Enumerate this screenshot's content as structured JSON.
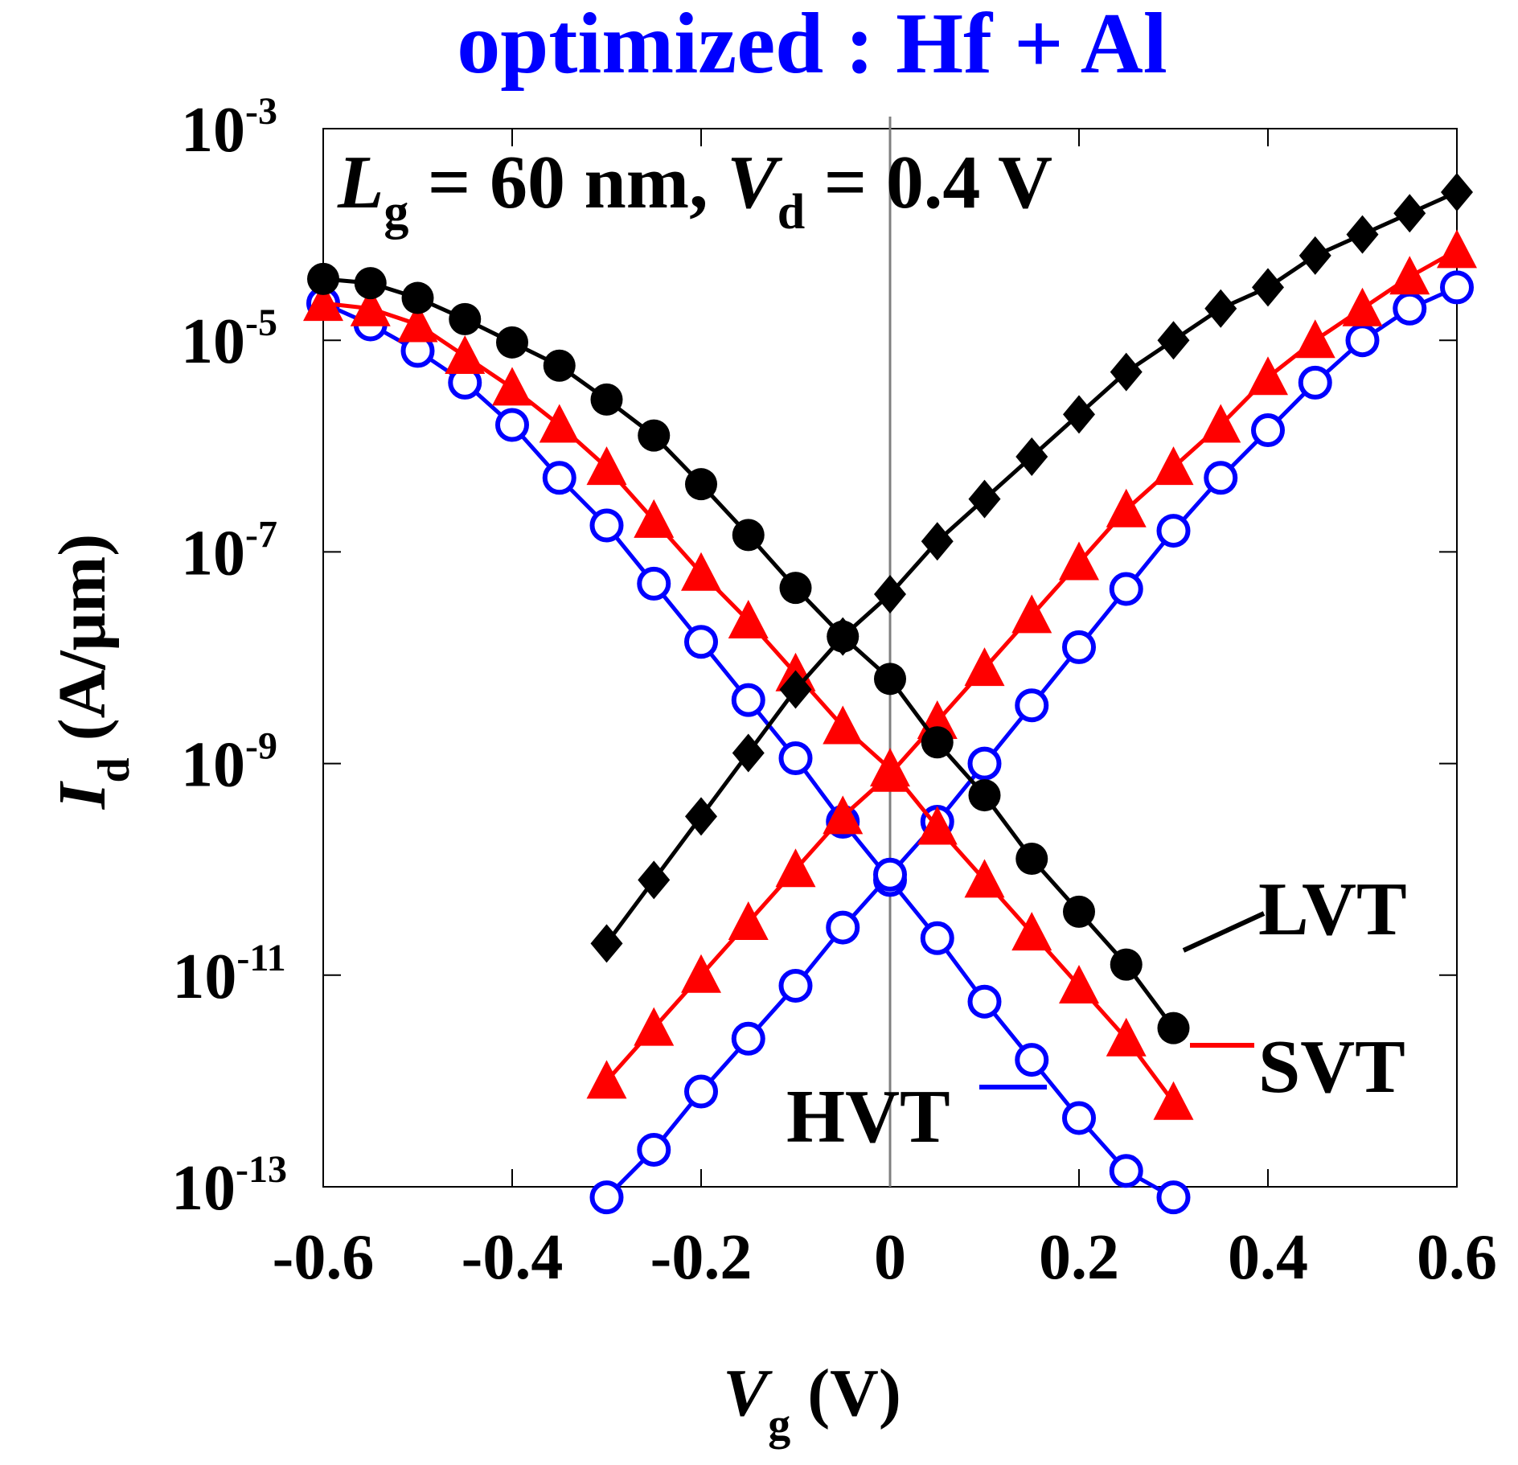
{
  "chart_data": {
    "type": "line",
    "title": "optimized : Hf + Al",
    "annotation": {
      "lg_symbol": "L",
      "lg_sub": "g",
      "lg_value": " = 60 nm, ",
      "vd_symbol": "V",
      "vd_sub": "d",
      "vd_value": " = 0.4 V"
    },
    "xlabel": {
      "symbol": "V",
      "sub": "g",
      "unit": " (V)"
    },
    "ylabel": {
      "symbol": "I",
      "sub": "d",
      "unit": " (A/μm)"
    },
    "xlim": [
      -0.6,
      0.6
    ],
    "ylim_log10": [
      -13,
      -3
    ],
    "x_ticks": [
      -0.6,
      -0.4,
      -0.2,
      0,
      0.2,
      0.4,
      0.6
    ],
    "x_tick_labels": [
      "-0.6",
      "-0.4",
      "-0.2",
      "0",
      "0.2",
      "0.4",
      "0.6"
    ],
    "y_ticks_log10": [
      -13,
      -11,
      -9,
      -7,
      -5,
      -3
    ],
    "y_tick_base": "10",
    "y_tick_exps": [
      "-13",
      "-11",
      "-9",
      "-7",
      "-5",
      "-3"
    ],
    "vertical_line_x": 0,
    "colors": {
      "LVT": "#000000",
      "SVT": "#ff0000",
      "HVT": "#0000ff",
      "title": "#0000ff",
      "axis": "#000000",
      "zero_line": "#808080"
    },
    "series": [
      {
        "name": "LVT",
        "label": "LVT",
        "color": "#000000",
        "branches": [
          {
            "name": "LVT-pmos",
            "marker": "circle-filled",
            "x": [
              -0.6,
              -0.55,
              -0.5,
              -0.45,
              -0.4,
              -0.35,
              -0.3,
              -0.25,
              -0.2,
              -0.15,
              -0.1,
              -0.05,
              0,
              0.05,
              0.1,
              0.15,
              0.2,
              0.25,
              0.3
            ],
            "log10_y": [
              -4.42,
              -4.46,
              -4.6,
              -4.8,
              -5.02,
              -5.24,
              -5.56,
              -5.9,
              -6.36,
              -6.84,
              -7.34,
              -7.8,
              -8.2,
              -8.8,
              -9.3,
              -9.9,
              -10.4,
              -10.9,
              -11.5
            ]
          },
          {
            "name": "LVT-nmos",
            "marker": "diamond-filled",
            "x": [
              -0.3,
              -0.25,
              -0.2,
              -0.15,
              -0.1,
              -0.05,
              0,
              0.05,
              0.1,
              0.15,
              0.2,
              0.25,
              0.3,
              0.35,
              0.4,
              0.45,
              0.5,
              0.55,
              0.6
            ],
            "log10_y": [
              -10.7,
              -10.1,
              -9.5,
              -8.9,
              -8.3,
              -7.8,
              -7.4,
              -6.9,
              -6.5,
              -6.1,
              -5.7,
              -5.3,
              -5.0,
              -4.7,
              -4.5,
              -4.2,
              -4.0,
              -3.8,
              -3.6
            ]
          }
        ]
      },
      {
        "name": "SVT",
        "label": "SVT",
        "color": "#ff0000",
        "branches": [
          {
            "name": "SVT-pmos",
            "marker": "triangle-filled",
            "x": [
              -0.6,
              -0.55,
              -0.5,
              -0.45,
              -0.4,
              -0.35,
              -0.3,
              -0.25,
              -0.2,
              -0.15,
              -0.1,
              -0.05,
              0,
              0.05,
              0.1,
              0.15,
              0.2,
              0.25,
              0.3
            ],
            "log10_y": [
              -4.65,
              -4.7,
              -4.85,
              -5.15,
              -5.45,
              -5.8,
              -6.2,
              -6.7,
              -7.2,
              -7.65,
              -8.15,
              -8.65,
              -9.05,
              -9.6,
              -10.1,
              -10.6,
              -11.1,
              -11.6,
              -12.2
            ]
          },
          {
            "name": "SVT-nmos",
            "marker": "triangle-filled",
            "x": [
              -0.3,
              -0.25,
              -0.2,
              -0.15,
              -0.1,
              -0.05,
              0,
              0.05,
              0.1,
              0.15,
              0.2,
              0.25,
              0.3,
              0.35,
              0.4,
              0.45,
              0.5,
              0.55,
              0.6
            ],
            "log10_y": [
              -12.0,
              -11.5,
              -11.0,
              -10.5,
              -10.0,
              -9.5,
              -9.1,
              -8.6,
              -8.1,
              -7.6,
              -7.1,
              -6.6,
              -6.2,
              -5.8,
              -5.35,
              -5.0,
              -4.7,
              -4.4,
              -4.15
            ]
          }
        ]
      },
      {
        "name": "HVT",
        "label": "HVT",
        "color": "#0000ff",
        "branches": [
          {
            "name": "HVT-pmos",
            "marker": "circle-open",
            "x": [
              -0.6,
              -0.55,
              -0.5,
              -0.45,
              -0.4,
              -0.35,
              -0.3,
              -0.25,
              -0.2,
              -0.15,
              -0.1,
              -0.05,
              0,
              0.05,
              0.1,
              0.15,
              0.2,
              0.25,
              0.3
            ],
            "log10_y": [
              -4.65,
              -4.85,
              -5.1,
              -5.4,
              -5.8,
              -6.3,
              -6.75,
              -7.3,
              -7.85,
              -8.4,
              -8.95,
              -9.55,
              -10.1,
              -10.65,
              -11.25,
              -11.8,
              -12.35,
              -12.85,
              -13.1
            ]
          },
          {
            "name": "HVT-nmos",
            "marker": "circle-open",
            "x": [
              -0.3,
              -0.25,
              -0.2,
              -0.15,
              -0.1,
              -0.05,
              0,
              0.05,
              0.1,
              0.15,
              0.2,
              0.25,
              0.3,
              0.35,
              0.4,
              0.45,
              0.5,
              0.55,
              0.6
            ],
            "log10_y": [
              -13.1,
              -12.65,
              -12.1,
              -11.6,
              -11.1,
              -10.55,
              -10.05,
              -9.55,
              -9.0,
              -8.45,
              -7.9,
              -7.35,
              -6.8,
              -6.3,
              -5.85,
              -5.4,
              -5.0,
              -4.7,
              -4.5
            ]
          }
        ]
      }
    ]
  }
}
